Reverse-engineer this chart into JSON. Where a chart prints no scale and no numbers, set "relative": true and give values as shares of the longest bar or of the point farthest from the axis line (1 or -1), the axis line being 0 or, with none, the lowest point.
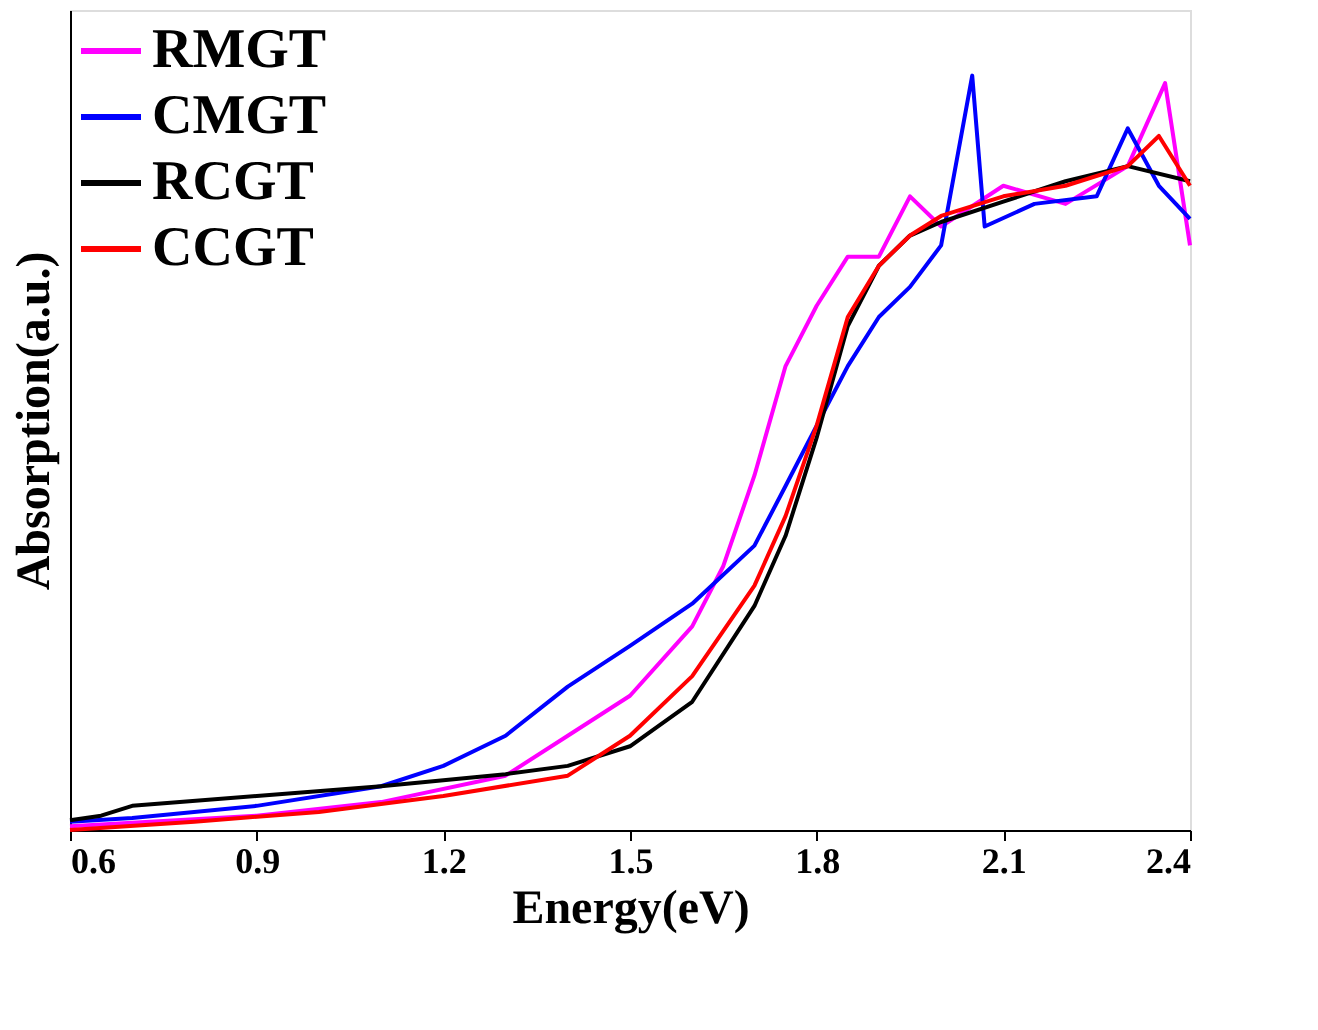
{
  "chart_data": {
    "type": "line",
    "xlabel": "Energy(eV)",
    "ylabel": "Absorption(a.u.)",
    "relative": true,
    "xlim": [
      0.6,
      2.4
    ],
    "xticks": [
      0.6,
      0.9,
      1.2,
      1.5,
      1.8,
      2.1,
      2.4
    ],
    "grid": false,
    "legend": "top left",
    "tick_labels": "x",
    "marker": "none",
    "line_style": "solid",
    "series": [
      {
        "name": "RMGT",
        "color": "#ff00ff",
        "x": [
          0.6,
          0.9,
          1.1,
          1.3,
          1.4,
          1.5,
          1.6,
          1.65,
          1.7,
          1.75,
          1.8,
          1.85,
          1.9,
          1.95,
          2.0,
          2.1,
          2.2,
          2.3,
          2.36,
          2.4
        ],
        "values": [
          0.005,
          0.019,
          0.037,
          0.072,
          0.125,
          0.178,
          0.27,
          0.35,
          0.47,
          0.615,
          0.695,
          0.76,
          0.76,
          0.84,
          0.8,
          0.854,
          0.83,
          0.88,
          0.99,
          0.775
        ]
      },
      {
        "name": "CMGT",
        "color": "#0000ff",
        "x": [
          0.6,
          0.7,
          0.9,
          1.1,
          1.2,
          1.3,
          1.4,
          1.5,
          1.6,
          1.7,
          1.75,
          1.8,
          1.85,
          1.9,
          1.95,
          2.0,
          2.05,
          2.07,
          2.15,
          2.25,
          2.3,
          2.35,
          2.4
        ],
        "values": [
          0.011,
          0.016,
          0.032,
          0.058,
          0.085,
          0.125,
          0.19,
          0.244,
          0.3,
          0.377,
          0.456,
          0.536,
          0.615,
          0.68,
          0.72,
          0.775,
          1.0,
          0.8,
          0.83,
          0.84,
          0.93,
          0.854,
          0.81
        ]
      },
      {
        "name": "RCGT",
        "color": "#000000",
        "x": [
          0.6,
          0.65,
          0.7,
          0.9,
          1.1,
          1.3,
          1.4,
          1.5,
          1.6,
          1.7,
          1.75,
          1.8,
          1.85,
          1.9,
          1.95,
          2.0,
          2.1,
          2.2,
          2.3,
          2.4
        ],
        "values": [
          0.013,
          0.019,
          0.032,
          0.045,
          0.058,
          0.074,
          0.085,
          0.111,
          0.17,
          0.297,
          0.39,
          0.52,
          0.668,
          0.748,
          0.788,
          0.806,
          0.833,
          0.86,
          0.88,
          0.86
        ]
      },
      {
        "name": "CCGT",
        "color": "#ff0000",
        "x": [
          0.6,
          0.8,
          1.0,
          1.2,
          1.4,
          1.5,
          1.6,
          1.7,
          1.75,
          1.8,
          1.85,
          1.9,
          1.95,
          2.0,
          2.1,
          2.2,
          2.3,
          2.35,
          2.4
        ],
        "values": [
          0.0,
          0.011,
          0.024,
          0.045,
          0.072,
          0.125,
          0.204,
          0.324,
          0.416,
          0.536,
          0.68,
          0.748,
          0.788,
          0.814,
          0.84,
          0.854,
          0.88,
          0.92,
          0.854
        ]
      }
    ]
  }
}
